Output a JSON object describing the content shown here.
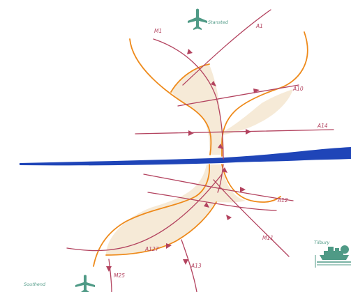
{
  "map": {
    "colors": {
      "background": "#ffffff",
      "river": "#1f45b8",
      "corridor_edge": "#ee8a1b",
      "corridor_fill": "#f3e3ca",
      "roads": "#b3435f",
      "landmarks": "#4f9a86"
    },
    "route_labels": {
      "top_left": "M1",
      "top_right": "A1",
      "upper_right": "A10",
      "mid_right": "A14",
      "lower_right": "A12",
      "lower_center": "M11",
      "lower_left": "A127",
      "bottom_center": "A13",
      "bottom_left": "M25"
    },
    "place_labels": {
      "top_airport": "Stansted",
      "bottom_airport": "Southend",
      "port": "Tilbury"
    },
    "icons": {
      "top_airport": "airplane-icon",
      "bottom_airport": "airplane-icon",
      "port": "ship-icon"
    }
  }
}
